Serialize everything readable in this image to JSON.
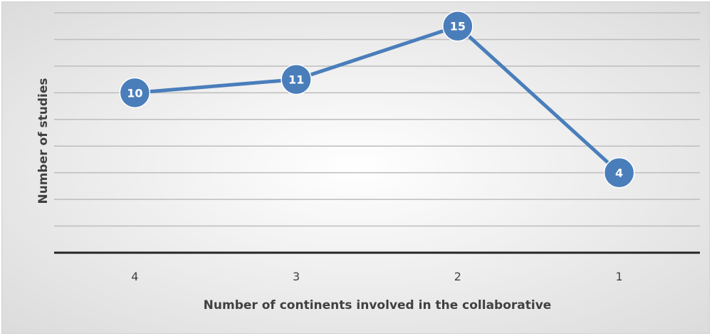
{
  "chart_data": {
    "type": "line",
    "categories": [
      "4",
      "3",
      "2",
      "1"
    ],
    "series": [
      {
        "values": [
          10,
          11,
          15,
          4
        ],
        "color": "#4a7ebb"
      }
    ],
    "xlabel": "Number of continents involved in the collaborative",
    "ylabel": "Number of studies",
    "ylim": [
      -2,
      16
    ],
    "grid": true,
    "data_labels": true,
    "colors": {
      "background_center": "#ffffff",
      "background_edge": "#d9d9d9",
      "gridline": "#bdbdbd",
      "axis": "#262626",
      "label_text": "#404040",
      "marker_text": "#ffffff",
      "marker_border": "#ffffff"
    }
  }
}
